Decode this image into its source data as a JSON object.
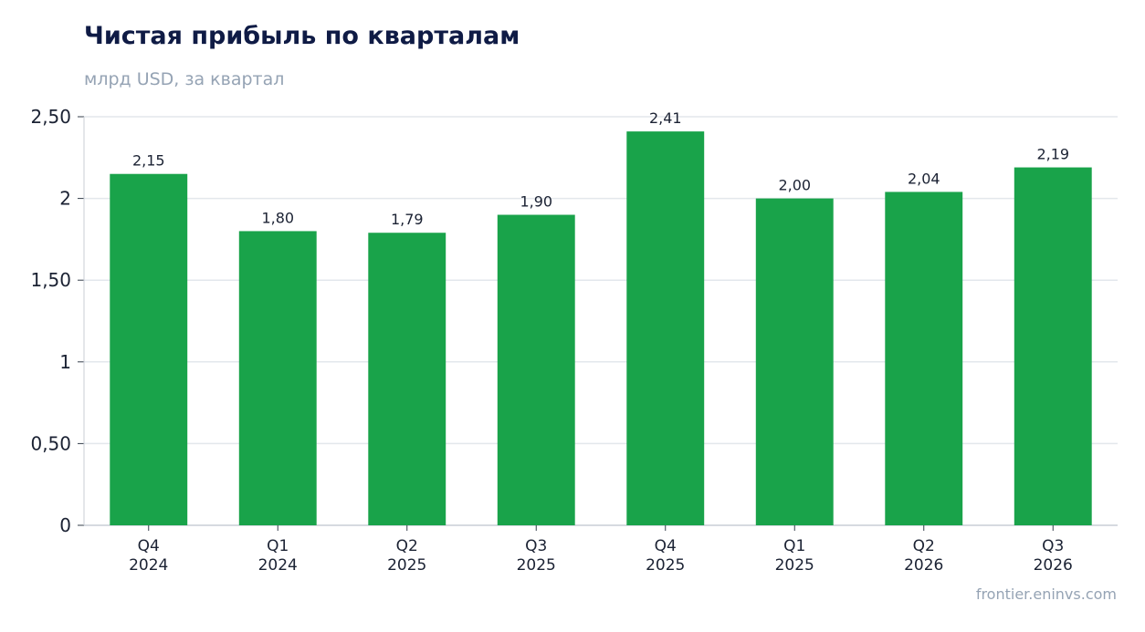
{
  "header": {
    "title": "Чистая прибыль по кварталам",
    "subtitle": "млрд USD, за квартал"
  },
  "footer": {
    "source": "frontier.eninvs.com"
  },
  "chart_data": {
    "type": "bar",
    "categories": [
      [
        "Q4",
        "2024"
      ],
      [
        "Q1",
        "2024"
      ],
      [
        "Q2",
        "2025"
      ],
      [
        "Q3",
        "2025"
      ],
      [
        "Q4",
        "2025"
      ],
      [
        "Q1",
        "2025"
      ],
      [
        "Q2",
        "2026"
      ],
      [
        "Q3",
        "2026"
      ]
    ],
    "values": [
      2.15,
      1.8,
      1.79,
      1.9,
      2.41,
      2.0,
      2.04,
      2.19
    ],
    "value_labels": [
      "2,15",
      "1,80",
      "1,79",
      "1,90",
      "2,41",
      "2,00",
      "2,04",
      "2,19"
    ],
    "ylim": [
      0,
      2.5
    ],
    "yticks": [
      0,
      0.5,
      1,
      1.5,
      2,
      2.5
    ],
    "ytick_labels": [
      "0",
      "0,50",
      "1",
      "1,50",
      "2",
      "2,50"
    ],
    "grid": true,
    "bar_color": "#19a34a",
    "grid_color": "#e3e7ec",
    "axis_color": "#c9ced6"
  }
}
